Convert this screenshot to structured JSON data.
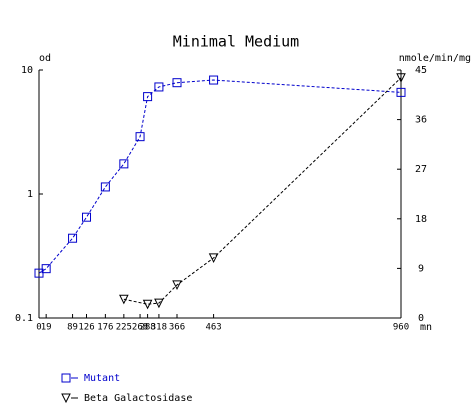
{
  "chart_data": {
    "type": "line",
    "title": "Minimal Medium",
    "ylabel": "od",
    "y2label": "nmole/min/mg",
    "xlabel": "mn",
    "x": [
      0,
      19,
      89,
      126,
      176,
      225,
      268,
      288,
      318,
      366,
      463,
      960
    ],
    "xlim": [
      0,
      960
    ],
    "xticks": [
      0,
      19,
      89,
      126,
      176,
      225,
      268,
      288,
      318,
      366,
      463,
      960
    ],
    "ylim": [
      0.1,
      10
    ],
    "yticks": [
      0.1,
      1,
      10
    ],
    "ylog": true,
    "y2lim": [
      0,
      45
    ],
    "y2ticks": [
      0,
      9,
      18,
      27,
      36,
      45
    ],
    "series": [
      {
        "name": "Mutant",
        "color": "#0000cc",
        "marker": "square",
        "values": [
          0.23,
          0.25,
          0.44,
          0.65,
          1.14,
          1.75,
          2.9,
          6.1,
          7.3,
          7.9,
          8.3,
          6.6
        ]
      },
      {
        "name": "Beta Galactosidase",
        "color": "#000000",
        "marker": "triangle",
        "axis": "y2",
        "values": [
          null,
          null,
          null,
          null,
          null,
          3.4,
          null,
          2.5,
          2.7,
          6.0,
          10.9,
          43.6
        ]
      }
    ]
  }
}
